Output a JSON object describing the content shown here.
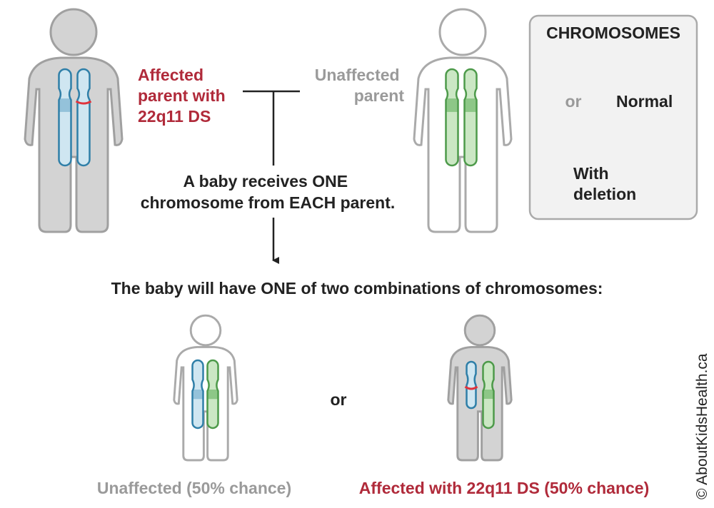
{
  "parents": {
    "affected": {
      "label_lines": [
        "Affected",
        "parent with",
        "22q11 DS"
      ]
    },
    "unaffected": {
      "label_lines": [
        "Unaffected",
        "parent"
      ]
    }
  },
  "inheritance_note": {
    "lines": [
      "A baby receives ONE",
      "chromosome from EACH parent."
    ]
  },
  "outcomes_heading": "The baby will have ONE of two combinations of chromosomes:",
  "outcomes": [
    {
      "label": "Unaffected (50% chance)"
    },
    {
      "label": "Affected with 22q11 DS (50% chance)"
    }
  ],
  "outcomes_separator": "or",
  "legend": {
    "title": "CHROMOSOMES",
    "separator": "or",
    "normal_label": "Normal",
    "deletion_label_lines": [
      "With",
      "deletion"
    ]
  },
  "copyright": "© AboutKidsHealth.ca"
}
